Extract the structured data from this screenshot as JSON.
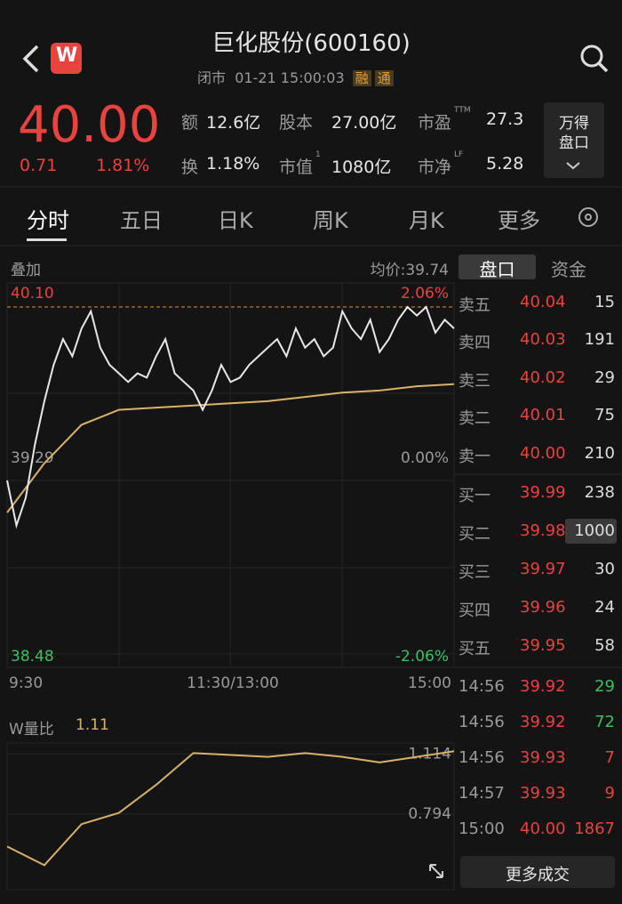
{
  "header": {
    "title": "巨化股份(600160)",
    "status": "闭市",
    "date": "01-21",
    "time": "15:00:03",
    "tags": [
      "融",
      "通"
    ],
    "logo": "W"
  },
  "quote": {
    "price": "40.00",
    "change": "0.71",
    "change_pct": "1.81%",
    "stats": [
      [
        {
          "label": "额",
          "value": "12.6亿"
        },
        {
          "label": "股本",
          "value": "27.00亿"
        },
        {
          "label": "市盈",
          "sup": "TTM",
          "value": "27.3"
        }
      ],
      [
        {
          "label": "换",
          "value": "1.18%"
        },
        {
          "label": "市值",
          "sup": "1",
          "value": "1080亿"
        },
        {
          "label": "市净",
          "sup": "LF",
          "value": "5.28"
        }
      ]
    ],
    "button": [
      "万得",
      "盘口"
    ]
  },
  "tabs": [
    "分时",
    "五日",
    "日K",
    "周K",
    "月K",
    "更多"
  ],
  "price_chart": {
    "overlay": "叠加",
    "avg_label": "均价:39.74",
    "ylim": [
      38.48,
      40.1
    ],
    "yticks": [
      {
        "value": 40.1,
        "label": "40.10"
      },
      {
        "value": 39.29,
        "label": "39.29"
      },
      {
        "value": 38.48,
        "label": "38.48"
      }
    ],
    "pct_labels": [
      "2.06%",
      "0.00%",
      "-2.06%"
    ],
    "xlabels": [
      "9:30",
      "11:30/13:00",
      "15:00"
    ],
    "price": [
      39.29,
      39.08,
      39.21,
      39.46,
      39.66,
      39.83,
      39.95,
      39.87,
      40.0,
      40.08,
      39.91,
      39.83,
      39.79,
      39.75,
      39.79,
      39.77,
      39.87,
      39.95,
      39.79,
      39.75,
      39.71,
      39.62,
      39.71,
      39.83,
      39.75,
      39.77,
      39.83,
      39.87,
      39.91,
      39.95,
      39.87,
      40.0,
      39.91,
      39.95,
      39.87,
      39.91,
      40.08,
      40.0,
      39.95,
      40.04,
      39.89,
      39.95,
      40.04,
      40.1,
      40.06,
      40.1,
      39.98,
      40.04,
      40.0
    ],
    "avg": [
      39.14,
      39.37,
      39.55,
      39.62,
      39.63,
      39.64,
      39.65,
      39.66,
      39.68,
      39.7,
      39.71,
      39.73,
      39.74
    ]
  },
  "book": {
    "tabs": [
      "盘口",
      "资金"
    ],
    "sell": [
      {
        "label": "卖五",
        "price": "40.04",
        "vol": 15
      },
      {
        "label": "卖四",
        "price": "40.03",
        "vol": 191
      },
      {
        "label": "卖三",
        "price": "40.02",
        "vol": 29
      },
      {
        "label": "卖二",
        "price": "40.01",
        "vol": 75
      },
      {
        "label": "卖一",
        "price": "40.00",
        "vol": 210
      }
    ],
    "buy": [
      {
        "label": "买一",
        "price": "39.99",
        "vol": 238
      },
      {
        "label": "买二",
        "price": "39.98",
        "vol": 1000
      },
      {
        "label": "买三",
        "price": "39.97",
        "vol": 30
      },
      {
        "label": "买四",
        "price": "39.96",
        "vol": 24
      },
      {
        "label": "买五",
        "price": "39.95",
        "vol": 58
      }
    ],
    "trades": [
      {
        "time": "14:56",
        "price": "39.92",
        "vol": 29,
        "color": "#3fbf5f"
      },
      {
        "time": "14:56",
        "price": "39.92",
        "vol": 72,
        "color": "#3fbf5f"
      },
      {
        "time": "14:56",
        "price": "39.93",
        "vol": 7,
        "color": "#e8433f"
      },
      {
        "time": "14:57",
        "price": "39.93",
        "vol": 9,
        "color": "#e8433f"
      },
      {
        "time": "15:00",
        "price": "40.00",
        "vol": 1867,
        "color": "#e8433f"
      }
    ],
    "more": "更多成交"
  },
  "volume_chart": {
    "label": "W量比",
    "current": "1.11",
    "ylim": [
      0.46,
      1.16
    ],
    "yticks": [
      1.114,
      0.794
    ],
    "values": [
      0.62,
      0.52,
      0.74,
      0.8,
      0.95,
      1.12,
      1.11,
      1.1,
      1.12,
      1.1,
      1.07,
      1.1,
      1.13
    ]
  }
}
